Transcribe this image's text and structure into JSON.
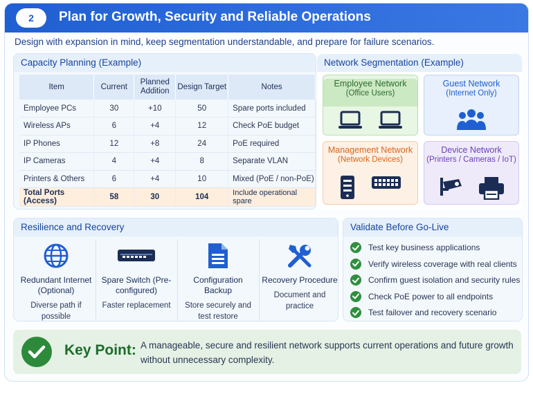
{
  "header": {
    "step_number": "2",
    "title": "Plan for Growth, Security and Reliable Operations",
    "subtitle": "Design with expansion in mind, keep segmentation understandable, and prepare for failure scenarios."
  },
  "capacity": {
    "title": "Capacity Planning (Example)",
    "columns": [
      "Item",
      "Current",
      "Planned Addition",
      "Design Target",
      "Notes"
    ],
    "rows": [
      [
        "Employee PCs",
        "30",
        "+10",
        "50",
        "Spare ports included"
      ],
      [
        "Wireless APs",
        "6",
        "+4",
        "12",
        "Check PoE budget"
      ],
      [
        "IP Phones",
        "12",
        "+8",
        "24",
        "PoE required"
      ],
      [
        "IP Cameras",
        "4",
        "+4",
        "8",
        "Separate VLAN"
      ],
      [
        "Printers & Others",
        "6",
        "+4",
        "10",
        "Mixed (PoE / non-PoE)"
      ]
    ],
    "total": [
      "Total Ports (Access)",
      "58",
      "30",
      "104",
      "Include operational spare"
    ]
  },
  "segmentation": {
    "title": "Network Segmentation (Example)",
    "segments": [
      {
        "name": "Employee Network",
        "sub": "(Office Users)",
        "icons": [
          "laptop-icon",
          "laptop-icon"
        ],
        "color": "#2f7d32"
      },
      {
        "name": "Guest Network",
        "sub": "(Internet Only)",
        "icons": [
          "users-icon"
        ],
        "color": "#1f5fd1"
      },
      {
        "name": "Management Network",
        "sub": "(Network Devices)",
        "icons": [
          "server-icon",
          "switch-icon"
        ],
        "color": "#d9661a"
      },
      {
        "name": "Device Network",
        "sub": "(Printers / Cameras / IoT)",
        "icons": [
          "camera-icon",
          "printer-icon"
        ],
        "color": "#6a3fb8"
      }
    ]
  },
  "resilience": {
    "title": "Resilience and Recovery",
    "items": [
      {
        "icon": "globe-icon",
        "title": "Redundant Internet (Optional)",
        "desc": "Diverse path if possible"
      },
      {
        "icon": "switch-icon",
        "title": "Spare Switch (Pre-configured)",
        "desc": "Faster replacement"
      },
      {
        "icon": "document-icon",
        "title": "Configuration Backup",
        "desc": "Store securely and test restore"
      },
      {
        "icon": "tools-icon",
        "title": "Recovery Procedure",
        "desc": "Document and practice"
      }
    ]
  },
  "validate": {
    "title": "Validate Before Go-Live",
    "items": [
      "Test key business applications",
      "Verify wireless coverage with real clients",
      "Confirm guest isolation and security rules",
      "Check PoE power to all endpoints",
      "Test failover and recovery scenario"
    ]
  },
  "keypoint": {
    "label": "Key Point:",
    "text": "A manageable, secure and resilient network supports current operations and future growth without unnecessary complexity."
  },
  "colors": {
    "banner": "#1f5fd1",
    "check_green": "#2f8f3e",
    "total_row": "#fdeedd"
  }
}
